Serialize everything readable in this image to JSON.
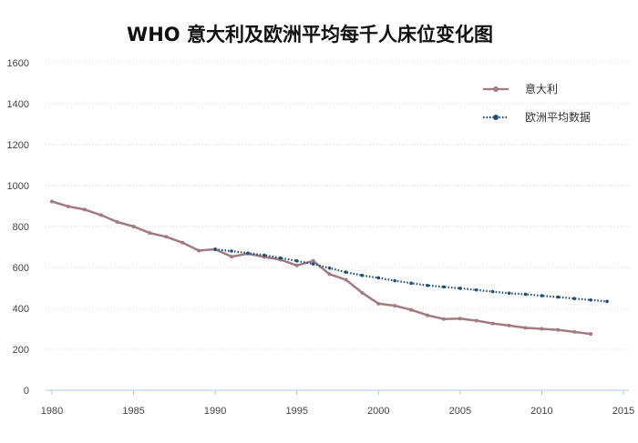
{
  "chart_data": {
    "type": "line",
    "title": "WHO 意大利及欧洲平均每千人床位变化图",
    "xlabel": "",
    "ylabel": "",
    "xlim": [
      1980,
      2015
    ],
    "ylim": [
      0,
      1600
    ],
    "x_ticks": [
      "1980",
      "1985",
      "1990",
      "1995",
      "2000",
      "2005",
      "2010",
      "2015"
    ],
    "y_ticks": [
      "0",
      "200",
      "400",
      "600",
      "800",
      "1000",
      "1200",
      "1400",
      "1600"
    ],
    "grid": "horizontal dotted",
    "legend_position": "top-right",
    "series": [
      {
        "name": "意大利",
        "color": "#a27b81",
        "style": "solid",
        "x": [
          1980,
          1981,
          1982,
          1983,
          1984,
          1985,
          1986,
          1987,
          1988,
          1989,
          1990,
          1991,
          1992,
          1993,
          1994,
          1995,
          1996,
          1997,
          1998,
          1999,
          2000,
          2001,
          2002,
          2003,
          2004,
          2005,
          2006,
          2007,
          2008,
          2009,
          2010,
          2011,
          2012,
          2013
        ],
        "y": [
          922,
          898,
          883,
          856,
          822,
          800,
          768,
          750,
          721,
          682,
          689,
          653,
          667,
          651,
          638,
          610,
          632,
          567,
          540,
          476,
          423,
          413,
          393,
          366,
          348,
          350,
          340,
          326,
          316,
          305,
          300,
          295,
          285,
          275
        ]
      },
      {
        "name": "欧洲平均数据",
        "color": "#1f4e79",
        "style": "dotted",
        "x": [
          1990,
          1991,
          1992,
          1993,
          1994,
          1995,
          1996,
          1997,
          1998,
          1999,
          2000,
          2001,
          2002,
          2003,
          2004,
          2005,
          2006,
          2007,
          2008,
          2009,
          2010,
          2011,
          2012,
          2013,
          2014
        ],
        "y": [
          688,
          680,
          670,
          660,
          646,
          632,
          617,
          597,
          577,
          561,
          549,
          535,
          523,
          512,
          505,
          498,
          490,
          482,
          474,
          469,
          462,
          455,
          448,
          441,
          434
        ]
      }
    ]
  }
}
